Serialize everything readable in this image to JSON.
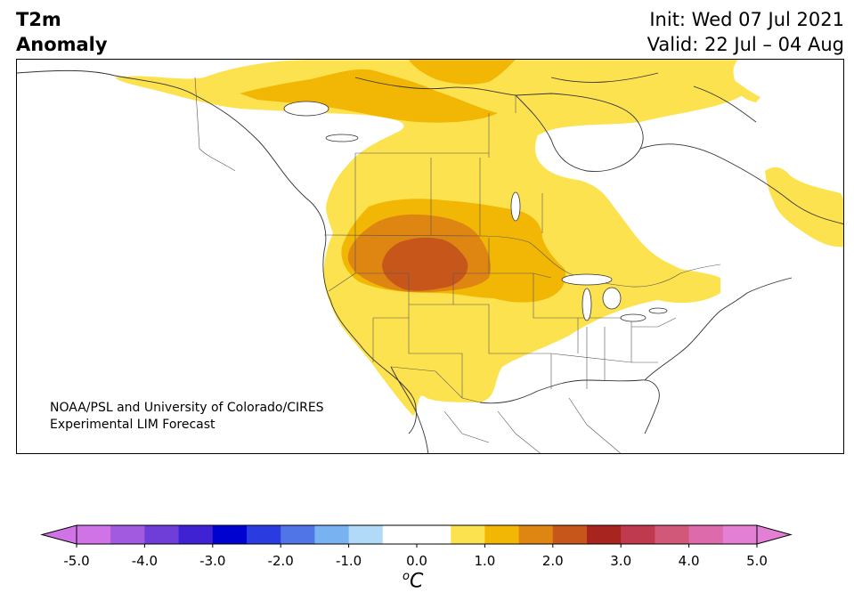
{
  "header": {
    "title_line1": "T2m",
    "title_line2": "Anomaly",
    "init": "Init: Wed 07 Jul 2021",
    "valid": "Valid: 22 Jul – 04 Aug"
  },
  "map": {
    "credit_line1": "NOAA/PSL and University of Colorado/CIRES",
    "credit_line2": "Experimental LIM Forecast",
    "anomaly_levels": [
      {
        "range": "0.5 to 1.0",
        "color": "#fde24f"
      },
      {
        "range": "1.0 to 1.5",
        "color": "#f2b705"
      },
      {
        "range": "1.5 to 2.0",
        "color": "#de8512"
      },
      {
        "range": "2.0 to 2.5",
        "color": "#c6561a"
      }
    ]
  },
  "colorbar": {
    "unit_label": "C",
    "unit_sup": "o",
    "tick_labels": [
      "-5.0",
      "-4.0",
      "-3.0",
      "-2.0",
      "-1.0",
      "0.0",
      "1.0",
      "2.0",
      "3.0",
      "4.0",
      "5.0"
    ],
    "colors": [
      "#d073e6",
      "#a25ae0",
      "#6f3ed8",
      "#3f22d2",
      "#0003d0",
      "#2a3ce0",
      "#4f75e6",
      "#78b2f0",
      "#b0daf8",
      "#ffffff",
      "#ffffff",
      "#fde24f",
      "#f2b705",
      "#de8512",
      "#c6561a",
      "#a8241f",
      "#bf3a4f",
      "#d15878",
      "#dd6aaa",
      "#e47fd6"
    ],
    "extend_low_color": "#d073e6",
    "extend_high_color": "#e47fd6"
  }
}
